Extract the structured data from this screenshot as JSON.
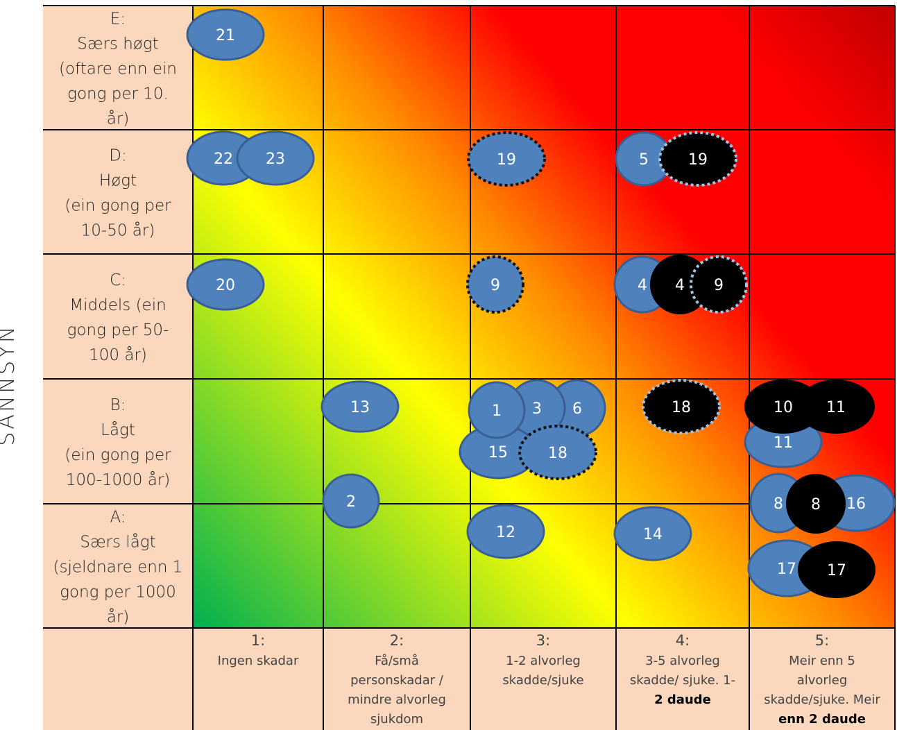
{
  "y_axis_title": "SANNSYN",
  "rows": [
    {
      "id": "E",
      "lines": [
        "E:",
        "Særs høgt",
        "(oftare enn ein",
        "gong per 10.",
        "år)"
      ]
    },
    {
      "id": "D",
      "lines": [
        "D:",
        "Høgt",
        "(ein gong per",
        "10-50 år)"
      ]
    },
    {
      "id": "C",
      "lines": [
        "C:",
        "Middels (ein",
        "gong per 50-",
        "100 år)"
      ]
    },
    {
      "id": "B",
      "lines": [
        "B:",
        "Lågt",
        "(ein gong per",
        "100-1000 år)"
      ]
    },
    {
      "id": "A",
      "lines": [
        "A:",
        "Særs lågt",
        "(sjeldnare enn 1",
        "gong per 1000",
        "år)"
      ]
    }
  ],
  "columns": [
    {
      "id": "1",
      "lines": [
        {
          "t": "1:",
          "b": false
        },
        {
          "t": "Ingen skadar",
          "b": false
        }
      ]
    },
    {
      "id": "2",
      "lines": [
        {
          "t": "2:",
          "b": false
        },
        {
          "t": "Få/små",
          "b": false
        },
        {
          "t": "personskadar /",
          "b": false
        },
        {
          "t": "mindre alvorleg",
          "b": false
        },
        {
          "t": "sjukdom",
          "b": false
        }
      ]
    },
    {
      "id": "3",
      "lines": [
        {
          "t": "3:",
          "b": false
        },
        {
          "t": "1-2 alvorleg",
          "b": false
        },
        {
          "t": "skadde/sjuke",
          "b": false
        }
      ]
    },
    {
      "id": "4",
      "lines": [
        {
          "t": "4:",
          "b": false
        },
        {
          "t": "3-5 alvorleg",
          "b": false
        },
        {
          "t": "skadde/ sjuke. 1-",
          "b": false
        },
        {
          "t": "2 daude",
          "b": true
        }
      ]
    },
    {
      "id": "5",
      "lines": [
        {
          "t": "5:",
          "b": false
        },
        {
          "t": "Meir enn 5",
          "b": false
        },
        {
          "t": "alvorleg",
          "b": false
        },
        {
          "t": "skadde/sjuke. Meir",
          "b": false
        },
        {
          "t": "enn 2 daude",
          "b": true
        }
      ]
    }
  ],
  "colors": {
    "label_bg": "#fad7bd",
    "blue": "#4f81bd",
    "blue_border": "#3a5f94",
    "black": "#000000",
    "dotted_dark": "#111111",
    "dotted_light": "#9dc3e6",
    "grad_green": "#00b050",
    "grad_yellow": "#ffff00",
    "grad_orange": "#ff8c00",
    "grad_red": "#ff0000",
    "grad_darkred": "#c00000"
  },
  "markers": [
    {
      "label": "21",
      "row": "E",
      "col": "1",
      "style": "blue"
    },
    {
      "label": "22",
      "row": "D",
      "col": "1",
      "style": "blue"
    },
    {
      "label": "23",
      "row": "D",
      "col": "1",
      "style": "blue"
    },
    {
      "label": "19",
      "row": "D",
      "col": "3",
      "style": "blue-dotted"
    },
    {
      "label": "5",
      "row": "D",
      "col": "4",
      "style": "blue"
    },
    {
      "label": "19",
      "row": "D",
      "col": "4",
      "style": "black-dotted"
    },
    {
      "label": "20",
      "row": "C",
      "col": "1",
      "style": "blue"
    },
    {
      "label": "9",
      "row": "C",
      "col": "3",
      "style": "blue-dotted"
    },
    {
      "label": "4",
      "row": "C",
      "col": "4",
      "style": "blue"
    },
    {
      "label": "4",
      "row": "C",
      "col": "4",
      "style": "black"
    },
    {
      "label": "9",
      "row": "C",
      "col": "4",
      "style": "black-dotted"
    },
    {
      "label": "13",
      "row": "B",
      "col": "2",
      "style": "blue"
    },
    {
      "label": "6",
      "row": "B",
      "col": "3",
      "style": "blue"
    },
    {
      "label": "3",
      "row": "B",
      "col": "3",
      "style": "blue"
    },
    {
      "label": "15",
      "row": "B",
      "col": "3",
      "style": "blue"
    },
    {
      "label": "1",
      "row": "B",
      "col": "3",
      "style": "blue"
    },
    {
      "label": "18",
      "row": "B",
      "col": "3",
      "style": "blue-dotted"
    },
    {
      "label": "18",
      "row": "B",
      "col": "4",
      "style": "black-dotted"
    },
    {
      "label": "11",
      "row": "B",
      "col": "5",
      "style": "blue"
    },
    {
      "label": "10",
      "row": "B",
      "col": "5",
      "style": "black"
    },
    {
      "label": "11",
      "row": "B",
      "col": "5",
      "style": "black"
    },
    {
      "label": "2",
      "row": "A/B",
      "col": "2",
      "style": "blue"
    },
    {
      "label": "12",
      "row": "A",
      "col": "3",
      "style": "blue"
    },
    {
      "label": "14",
      "row": "A",
      "col": "4",
      "style": "blue"
    },
    {
      "label": "16",
      "row": "A",
      "col": "5",
      "style": "blue"
    },
    {
      "label": "8",
      "row": "A",
      "col": "5",
      "style": "blue"
    },
    {
      "label": "8",
      "row": "A",
      "col": "5",
      "style": "black"
    },
    {
      "label": "17",
      "row": "A",
      "col": "5",
      "style": "blue"
    },
    {
      "label": "17",
      "row": "A",
      "col": "5",
      "style": "black"
    }
  ]
}
